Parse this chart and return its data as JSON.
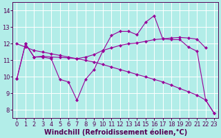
{
  "xlabel": "Windchill (Refroidissement éolien,°C)",
  "bg_color": "#b2ede8",
  "grid_color": "#ffffff",
  "line_color": "#990099",
  "x_ticks": [
    0,
    1,
    2,
    3,
    4,
    5,
    6,
    7,
    8,
    9,
    10,
    11,
    12,
    13,
    14,
    15,
    16,
    17,
    18,
    19,
    20,
    21,
    22,
    23
  ],
  "y_ticks": [
    8,
    9,
    10,
    11,
    12,
    13,
    14
  ],
  "ylim": [
    7.5,
    14.5
  ],
  "xlim": [
    -0.5,
    23.5
  ],
  "line1_x": [
    0,
    1,
    2,
    3,
    4,
    5,
    6,
    7,
    8,
    9,
    10,
    11,
    12,
    13,
    14,
    15,
    16,
    17,
    18,
    19,
    20,
    21,
    22,
    23
  ],
  "line1_y": [
    9.9,
    12.0,
    11.2,
    11.2,
    11.1,
    9.85,
    9.7,
    8.6,
    9.85,
    10.45,
    11.55,
    12.5,
    12.75,
    12.75,
    12.55,
    13.3,
    13.7,
    12.3,
    12.25,
    12.25,
    11.8,
    11.55,
    8.6,
    7.8
  ],
  "line2_x": [
    0,
    1,
    2,
    3,
    4,
    5,
    6,
    7,
    8,
    9,
    10,
    11,
    12,
    13,
    14,
    15,
    16,
    17,
    18,
    19,
    20,
    21,
    22
  ],
  "line2_y": [
    9.9,
    12.0,
    11.2,
    11.25,
    11.2,
    11.18,
    11.15,
    11.1,
    11.2,
    11.35,
    11.6,
    11.75,
    11.9,
    12.0,
    12.05,
    12.15,
    12.25,
    12.3,
    12.35,
    12.38,
    12.35,
    12.28,
    11.75
  ],
  "line3_x": [
    0,
    1,
    2,
    3,
    4,
    5,
    6,
    7,
    8,
    9,
    10,
    11,
    12,
    13,
    14,
    15,
    16,
    17,
    18,
    19,
    20,
    21,
    22,
    23
  ],
  "line3_y": [
    12.0,
    11.8,
    11.6,
    11.5,
    11.4,
    11.3,
    11.2,
    11.1,
    11.0,
    10.9,
    10.75,
    10.6,
    10.45,
    10.3,
    10.15,
    10.0,
    9.85,
    9.7,
    9.5,
    9.3,
    9.1,
    8.9,
    8.6,
    7.8
  ],
  "tick_fontsize": 6.0,
  "label_fontsize": 7.0
}
